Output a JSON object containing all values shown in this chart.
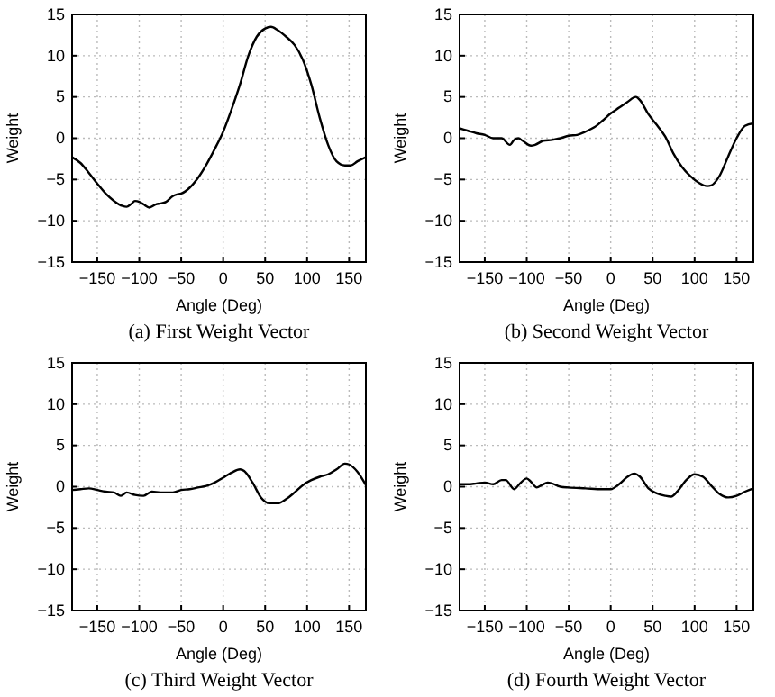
{
  "chart_data": [
    {
      "type": "line",
      "title": "(a) First Weight Vector",
      "xlabel": "Angle (Deg)",
      "ylabel": "Weight",
      "xlim": [
        -180,
        170
      ],
      "ylim": [
        -15,
        15
      ],
      "xticks": [
        -150,
        -100,
        -50,
        0,
        50,
        100,
        150
      ],
      "yticks": [
        -15,
        -10,
        -5,
        0,
        5,
        10,
        15
      ],
      "grid": true,
      "line_style": "solid",
      "series": [
        {
          "color": "#000000",
          "x": [
            -180,
            -170,
            -160,
            -150,
            -140,
            -130,
            -120,
            -115,
            -110,
            -105,
            -100,
            -95,
            -88,
            -80,
            -75,
            -68,
            -60,
            -55,
            -50,
            -40,
            -30,
            -20,
            -10,
            0,
            10,
            20,
            30,
            40,
            50,
            57,
            65,
            75,
            85,
            95,
            105,
            115,
            125,
            135,
            145,
            152,
            160,
            170
          ],
          "values": [
            -2.3,
            -3,
            -4.2,
            -5.5,
            -6.7,
            -7.6,
            -8.2,
            -8.3,
            -8,
            -7.6,
            -7.7,
            -8,
            -8.4,
            -8,
            -7.9,
            -7.7,
            -7,
            -6.8,
            -6.7,
            -6,
            -4.8,
            -3.2,
            -1.3,
            0.8,
            3.5,
            6.5,
            10,
            12.3,
            13.3,
            13.5,
            13.1,
            12.3,
            11.3,
            9.5,
            6.5,
            2.5,
            -0.8,
            -2.8,
            -3.3,
            -3.3,
            -2.8,
            -2.3
          ]
        }
      ]
    },
    {
      "type": "line",
      "title": "(b) Second Weight Vector",
      "xlabel": "Angle (Deg)",
      "ylabel": "Weight",
      "xlim": [
        -180,
        170
      ],
      "ylim": [
        -15,
        15
      ],
      "xticks": [
        -150,
        -100,
        -50,
        0,
        50,
        100,
        150
      ],
      "yticks": [
        -15,
        -10,
        -5,
        0,
        5,
        10,
        15
      ],
      "grid": true,
      "line_style": "solid",
      "series": [
        {
          "color": "#000000",
          "x": [
            -180,
            -170,
            -160,
            -150,
            -140,
            -130,
            -120,
            -115,
            -110,
            -105,
            -95,
            -90,
            -80,
            -70,
            -60,
            -50,
            -40,
            -30,
            -20,
            -10,
            0,
            10,
            20,
            30,
            35,
            45,
            55,
            65,
            75,
            85,
            95,
            105,
            115,
            120,
            130,
            140,
            150,
            160,
            170
          ],
          "values": [
            1.2,
            0.9,
            0.6,
            0.4,
            0,
            0,
            -0.8,
            -0.2,
            0,
            -0.3,
            -0.9,
            -0.8,
            -0.3,
            -0.2,
            0,
            0.3,
            0.4,
            0.8,
            1.3,
            2.1,
            3,
            3.7,
            4.4,
            5,
            4.6,
            2.9,
            1.6,
            0.2,
            -1.9,
            -3.5,
            -4.6,
            -5.4,
            -5.8,
            -5.7,
            -4.5,
            -2.2,
            0,
            1.5,
            1.8
          ]
        }
      ]
    },
    {
      "type": "line",
      "title": "(c) Third Weight Vector",
      "xlabel": "Angle (Deg)",
      "ylabel": "Weight",
      "xlim": [
        -180,
        170
      ],
      "ylim": [
        -15,
        15
      ],
      "xticks": [
        -150,
        -100,
        -50,
        0,
        50,
        100,
        150
      ],
      "yticks": [
        -15,
        -10,
        -5,
        0,
        5,
        10,
        15
      ],
      "grid": true,
      "line_style": "solid",
      "series": [
        {
          "color": "#000000",
          "x": [
            -180,
            -170,
            -160,
            -150,
            -140,
            -130,
            -122,
            -115,
            -105,
            -95,
            -85,
            -75,
            -60,
            -50,
            -40,
            -30,
            -20,
            -10,
            0,
            10,
            20,
            25,
            35,
            45,
            55,
            65,
            75,
            85,
            95,
            105,
            115,
            125,
            135,
            145,
            150,
            160,
            170
          ],
          "values": [
            -0.4,
            -0.3,
            -0.2,
            -0.4,
            -0.6,
            -0.7,
            -1.1,
            -0.7,
            -1,
            -1.1,
            -0.6,
            -0.7,
            -0.7,
            -0.4,
            -0.3,
            -0.1,
            0.1,
            0.5,
            1.1,
            1.7,
            2.1,
            1.9,
            0.5,
            -1.3,
            -2,
            -2,
            -1.5,
            -0.7,
            0.2,
            0.8,
            1.2,
            1.5,
            2.1,
            2.8,
            2.7,
            1.8,
            0.2
          ]
        }
      ]
    },
    {
      "type": "line",
      "title": "(d) Fourth Weight Vector",
      "xlabel": "Angle (Deg)",
      "ylabel": "Weight",
      "xlim": [
        -180,
        170
      ],
      "ylim": [
        -15,
        15
      ],
      "xticks": [
        -150,
        -100,
        -50,
        0,
        50,
        100,
        150
      ],
      "yticks": [
        -15,
        -10,
        -5,
        0,
        5,
        10,
        15
      ],
      "grid": true,
      "line_style": "solid",
      "series": [
        {
          "color": "#000000",
          "x": [
            -180,
            -170,
            -160,
            -150,
            -140,
            -130,
            -125,
            -115,
            -108,
            -100,
            -95,
            -88,
            -82,
            -75,
            -70,
            -60,
            -50,
            -30,
            -10,
            0,
            10,
            20,
            28,
            35,
            45,
            55,
            65,
            72,
            80,
            90,
            100,
            110,
            120,
            130,
            140,
            150,
            160,
            170
          ],
          "values": [
            0.3,
            0.3,
            0.4,
            0.5,
            0.3,
            0.8,
            0.8,
            -0.3,
            0.4,
            1,
            0.6,
            -0.1,
            0.2,
            0.5,
            0.4,
            0,
            -0.1,
            -0.2,
            -0.3,
            -0.3,
            0.3,
            1.2,
            1.6,
            1.2,
            -0.2,
            -0.8,
            -1.1,
            -1.2,
            -0.5,
            0.8,
            1.5,
            1.2,
            0.1,
            -0.9,
            -1.3,
            -1.1,
            -0.6,
            -0.2
          ]
        }
      ]
    }
  ]
}
